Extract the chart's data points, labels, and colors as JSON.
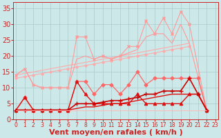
{
  "x": [
    0,
    1,
    2,
    3,
    4,
    5,
    6,
    7,
    8,
    9,
    10,
    11,
    12,
    13,
    14,
    15,
    16,
    17,
    18,
    19,
    20,
    21,
    22,
    23
  ],
  "series": [
    {
      "color": "#ffaaaa",
      "linewidth": 0.8,
      "marker": null,
      "values": [
        14,
        14.5,
        15,
        15.5,
        16,
        16.5,
        17,
        17.5,
        18,
        18.5,
        19,
        19.5,
        20,
        20.5,
        21,
        21.5,
        22,
        22.5,
        23,
        23.5,
        24,
        null,
        null,
        null
      ]
    },
    {
      "color": "#ffaaaa",
      "linewidth": 0.8,
      "marker": "o",
      "markersize": 2,
      "values": [
        13,
        13.5,
        14,
        14.5,
        15,
        15.5,
        16,
        16.5,
        17,
        17.5,
        18,
        18.5,
        19,
        19.5,
        20,
        20.5,
        21,
        21.5,
        22,
        22.5,
        23,
        null,
        null,
        null
      ]
    },
    {
      "color": "#ff9999",
      "linewidth": 0.8,
      "marker": "x",
      "markersize": 3,
      "values": [
        14,
        16,
        11,
        10,
        10,
        10,
        10,
        26,
        26,
        19,
        20,
        19,
        20,
        23,
        23,
        31,
        27,
        32,
        27,
        34,
        30,
        null,
        3,
        null
      ]
    },
    {
      "color": "#ff9999",
      "linewidth": 0.8,
      "marker": null,
      "values": [
        14,
        16,
        11,
        10,
        10,
        10,
        10,
        19,
        20,
        19,
        20,
        19,
        20,
        21,
        22,
        26,
        27,
        27,
        24,
        30,
        24,
        null,
        3,
        null
      ]
    },
    {
      "color": "#ff6666",
      "linewidth": 0.9,
      "marker": "D",
      "markersize": 2.5,
      "values": [
        3,
        7,
        3,
        3,
        3,
        3,
        3,
        12,
        12,
        8,
        11,
        11,
        8,
        11,
        15,
        11,
        13,
        13,
        13,
        13,
        13,
        13,
        3,
        null
      ]
    },
    {
      "color": "#dd1111",
      "linewidth": 1.0,
      "marker": "^",
      "markersize": 3,
      "values": [
        3,
        7,
        3,
        3,
        3,
        3,
        3,
        12,
        8,
        5,
        5,
        5,
        5,
        5,
        8,
        5,
        5,
        5,
        5,
        5,
        8,
        8,
        3,
        null
      ]
    },
    {
      "color": "#dd1111",
      "linewidth": 1.0,
      "marker": null,
      "values": [
        3,
        3,
        3,
        3,
        3,
        3,
        3,
        3.5,
        4,
        4,
        4.5,
        5,
        5,
        5.5,
        6,
        6.5,
        7,
        7.5,
        8,
        8,
        8,
        8,
        3,
        null
      ]
    },
    {
      "color": "#cc0000",
      "linewidth": 1.2,
      "marker": "+",
      "markersize": 4,
      "values": [
        3,
        3,
        3,
        3,
        3,
        3,
        3,
        5,
        5,
        5,
        5.5,
        6,
        6,
        6.5,
        7,
        8,
        8,
        9,
        9,
        9,
        13,
        8,
        3,
        null
      ]
    },
    {
      "color": "#ffbbbb",
      "linewidth": 0.7,
      "marker": null,
      "values": [
        3,
        3,
        3,
        3,
        3,
        3,
        3,
        3,
        3,
        3,
        3,
        3,
        3,
        3,
        3,
        3,
        3,
        3,
        3,
        3,
        3,
        3,
        3,
        null
      ]
    }
  ],
  "bgcolor": "#cce8e8",
  "grid_color": "#aacccc",
  "xlabel": "Vent moyen/en rafales ( km/h )",
  "ylabel_ticks": [
    0,
    5,
    10,
    15,
    20,
    25,
    30,
    35
  ],
  "xlim": [
    -0.3,
    23.3
  ],
  "ylim": [
    0,
    37
  ],
  "tick_color": "#cc2222",
  "label_color": "#cc2222",
  "xlabel_fontsize": 8,
  "ytick_fontsize": 7,
  "xtick_fontsize": 5.5
}
